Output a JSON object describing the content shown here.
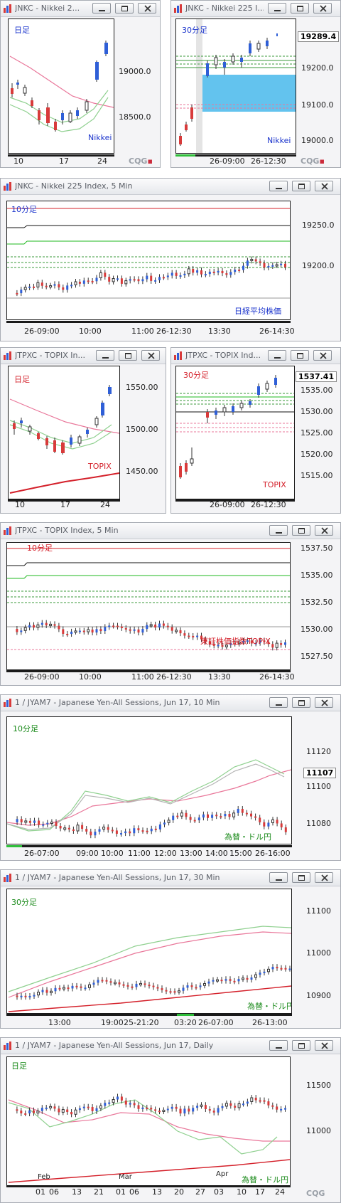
{
  "colors": {
    "up": "#2f5fd7",
    "down": "#d83a3a",
    "ma_red": "#e9779a",
    "ma_green": "#8fd08f",
    "text_blue": "#1a33cc",
    "text_red": "#d4202a",
    "text_green": "#1a8a1a",
    "box": "#63c3ee"
  },
  "windows": [
    {
      "title": "JNKC - Nikkei 2...",
      "period": "日足",
      "symbol": "Nikkei",
      "yticks": [
        "19000.0",
        "18500.0"
      ],
      "xticks": [
        "10",
        "17",
        "24"
      ]
    },
    {
      "title": "JNKC - Nikkei 225 I...",
      "period": "30分足",
      "symbol": "Nikkei",
      "tag": "19289.4",
      "yticks": [
        "19200.0",
        "19100.0",
        "19000.0"
      ],
      "xticks": [
        "26-09:00",
        "26-12:30"
      ]
    },
    {
      "title": "JNKC - Nikkei 225 Index, 5 Min",
      "period": "10分足",
      "symbol": "日経平均株価",
      "yticks": [
        "19250.0",
        "19200.0"
      ],
      "xticks": [
        "26-09:00",
        "10:00",
        "11:00",
        "26-12:30",
        "13:30",
        "26-14:30"
      ]
    },
    {
      "title": "JTPXC - TOPIX In...",
      "period": "日足",
      "symbol": "TOPIX",
      "yticks": [
        "1550.00",
        "1500.00",
        "1450.00"
      ],
      "xticks": [
        "10",
        "17",
        "24"
      ]
    },
    {
      "title": "JTPXC - TOPIX Ind...",
      "period": "30分足",
      "symbol": "TOPIX",
      "tag": "1537.41",
      "yticks": [
        "1535.00",
        "1530.00",
        "1525.00",
        "1520.00",
        "1515.00"
      ],
      "xticks": [
        "26-09:00",
        "26-12:30"
      ]
    },
    {
      "title": "JTPXC - TOPIX Index, 5 Min",
      "period": "10分足",
      "symbol": "東証株価指数TOPIX",
      "yticks": [
        "1537.50",
        "1535.00",
        "1532.50",
        "1530.00",
        "1527.50"
      ],
      "xticks": [
        "26-09:00",
        "10:00",
        "11:00",
        "26-12:30",
        "13:30",
        "26-14:30"
      ]
    },
    {
      "title": "1 / JYAM7 - Japanese Yen-All Sessions, Jun 17, 10 Min",
      "period": "10分足",
      "symbol": "為替・ドル円",
      "tag": "11107",
      "yticks": [
        "11120",
        "11100",
        "11080"
      ],
      "xticks": [
        "26-07:00",
        "09:00",
        "10:00",
        "11:00",
        "12:00",
        "13:00",
        "14:00",
        "15:00",
        "26-16:00"
      ]
    },
    {
      "title": "1 / JYAM7 - Japanese Yen-All Sessions, Jun 17, 30 Min",
      "period": "30分足",
      "symbol": "為替・ドル円",
      "yticks": [
        "11100",
        "11000",
        "10900"
      ],
      "xticks": [
        "13:00",
        "19:00",
        "25-21:20",
        "03:20",
        "26-07:00",
        "26-13:00"
      ]
    },
    {
      "title": "1 / JYAM7 - Japanese Yen-All Sessions, Jun 17, Daily",
      "period": "日足",
      "symbol": "為替・ドル円",
      "yticks": [
        "11500",
        "11000"
      ],
      "xticks": [
        "01",
        "06",
        "13",
        "21",
        "01",
        "06",
        "13",
        "20",
        "27",
        "03",
        "10",
        "17",
        "24"
      ],
      "months": [
        "Feb",
        "Mar",
        "Apr"
      ]
    }
  ],
  "cqg": {
    "text": "CQG"
  }
}
